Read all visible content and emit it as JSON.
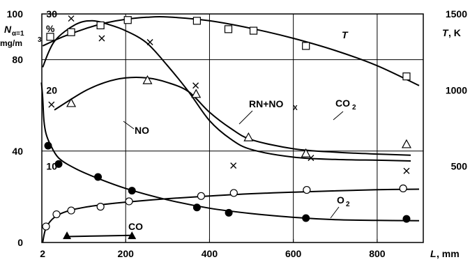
{
  "chart_data": {
    "type": "line",
    "x_axis": {
      "label_var": "L",
      "label_unit": ", mm",
      "ticks": [
        "2",
        "200",
        "400",
        "600",
        "800"
      ],
      "tick_values": [
        2,
        200,
        400,
        600,
        800
      ],
      "range": [
        0,
        910
      ]
    },
    "y_axis_left_outer": {
      "label_var": "N",
      "label_sub": "α=1",
      "label_unit": "mg/m",
      "label_unit_sup": "3",
      "ticks": [
        "0",
        "40",
        "80",
        "100"
      ],
      "tick_values": [
        0,
        40,
        80,
        100
      ],
      "range": [
        0,
        100
      ]
    },
    "y_axis_left_inner": {
      "label": "%",
      "ticks": [
        "10",
        "20",
        "30"
      ],
      "tick_values": [
        10,
        20,
        30
      ],
      "range": [
        0,
        30
      ]
    },
    "y_axis_right": {
      "label_var": "T",
      "label_unit": ", K",
      "ticks": [
        "500",
        "1000",
        "1500"
      ],
      "tick_values": [
        500,
        1000,
        1500
      ],
      "range": [
        0,
        1500
      ]
    },
    "grid": true,
    "series": [
      {
        "name": "T",
        "axis": "right",
        "marker": "open-square",
        "points": [
          [
            20,
            1350
          ],
          [
            70,
            1380
          ],
          [
            140,
            1425
          ],
          [
            205,
            1460
          ],
          [
            370,
            1455
          ],
          [
            445,
            1400
          ],
          [
            505,
            1390
          ],
          [
            630,
            1290
          ],
          [
            870,
            1090
          ]
        ],
        "curve": [
          [
            2,
            1290
          ],
          [
            50,
            1350
          ],
          [
            100,
            1400
          ],
          [
            150,
            1440
          ],
          [
            200,
            1465
          ],
          [
            250,
            1478
          ],
          [
            300,
            1480
          ],
          [
            400,
            1455
          ],
          [
            500,
            1405
          ],
          [
            600,
            1340
          ],
          [
            700,
            1260
          ],
          [
            800,
            1160
          ],
          [
            900,
            1030
          ]
        ]
      },
      {
        "name": "",
        "axis": "right",
        "marker": "x",
        "points": [
          [
            23,
            905
          ],
          [
            70,
            1470
          ],
          [
            143,
            1340
          ],
          [
            258,
            1315
          ],
          [
            367,
            1030
          ],
          [
            457,
            505
          ],
          [
            642,
            555
          ],
          [
            870,
            470
          ]
        ],
        "curve": [
          [
            2,
            1150
          ],
          [
            30,
            1320
          ],
          [
            80,
            1430
          ],
          [
            120,
            1455
          ],
          [
            160,
            1430
          ],
          [
            200,
            1390
          ],
          [
            250,
            1310
          ],
          [
            300,
            1160
          ],
          [
            350,
            990
          ],
          [
            400,
            800
          ],
          [
            450,
            680
          ],
          [
            500,
            610
          ],
          [
            600,
            560
          ],
          [
            700,
            545
          ],
          [
            800,
            540
          ],
          [
            880,
            535
          ]
        ]
      },
      {
        "name": "NO",
        "axis": "left_outer",
        "marker": "open-triangle",
        "points": [
          [
            70,
            61
          ],
          [
            252,
            71
          ],
          [
            368,
            65
          ],
          [
            493,
            46
          ],
          [
            630,
            39
          ],
          [
            870,
            43
          ]
        ],
        "curve": [
          [
            30,
            58
          ],
          [
            100,
            66
          ],
          [
            150,
            70
          ],
          [
            200,
            72
          ],
          [
            250,
            72
          ],
          [
            300,
            70
          ],
          [
            350,
            66
          ],
          [
            400,
            57
          ],
          [
            450,
            50
          ],
          [
            500,
            45
          ],
          [
            600,
            41
          ],
          [
            700,
            39.5
          ],
          [
            800,
            38.7
          ],
          [
            880,
            38.2
          ]
        ]
      },
      {
        "name": "CO",
        "axis": "left_outer",
        "marker": "filled-triangle",
        "points": [
          [
            60,
            3
          ],
          [
            215,
            3
          ]
        ],
        "curve": [
          [
            60,
            2.6
          ],
          [
            215,
            3.1
          ]
        ]
      },
      {
        "name": "",
        "axis": "left_inner",
        "marker": "open-circle",
        "points": [
          [
            10,
            2.1
          ],
          [
            35,
            3.7
          ],
          [
            70,
            4.2
          ],
          [
            140,
            4.7
          ],
          [
            208,
            5.4
          ],
          [
            380,
            6.1
          ],
          [
            458,
            6.5
          ],
          [
            632,
            6.9
          ],
          [
            862,
            7.1
          ]
        ],
        "curve": [
          [
            2,
            0
          ],
          [
            10,
            1.9
          ],
          [
            30,
            3.3
          ],
          [
            60,
            4.1
          ],
          [
            100,
            4.6
          ],
          [
            150,
            5.0
          ],
          [
            200,
            5.3
          ],
          [
            300,
            5.75
          ],
          [
            400,
            6.1
          ],
          [
            500,
            6.4
          ],
          [
            600,
            6.6
          ],
          [
            700,
            6.78
          ],
          [
            800,
            6.92
          ],
          [
            900,
            7.0
          ]
        ]
      },
      {
        "name": "O2",
        "axis": "left_inner",
        "marker": "filled-circle",
        "points": [
          [
            15,
            12.7
          ],
          [
            40,
            10.3
          ],
          [
            134,
            8.6
          ],
          [
            215,
            6.8
          ],
          [
            370,
            4.6
          ],
          [
            446,
            3.9
          ],
          [
            630,
            3.2
          ],
          [
            870,
            3.1
          ]
        ],
        "curve": [
          [
            -1,
            21.0
          ],
          [
            2,
            19.0
          ],
          [
            5,
            16.0
          ],
          [
            10,
            14.3
          ],
          [
            20,
            12.9
          ],
          [
            40,
            11.1
          ],
          [
            80,
            9.7
          ],
          [
            130,
            8.5
          ],
          [
            200,
            7.1
          ],
          [
            300,
            5.6
          ],
          [
            400,
            4.5
          ],
          [
            500,
            3.8
          ],
          [
            600,
            3.3
          ],
          [
            700,
            3.0
          ],
          [
            800,
            2.9
          ],
          [
            900,
            2.85
          ]
        ]
      }
    ],
    "annotations": [
      {
        "text": "T"
      },
      {
        "text": "RN+NO",
        "sub": "X"
      },
      {
        "text": "CO",
        "sub": "2"
      },
      {
        "text": "NO"
      },
      {
        "text": "O",
        "sub": "2"
      },
      {
        "text": "CO"
      }
    ]
  }
}
